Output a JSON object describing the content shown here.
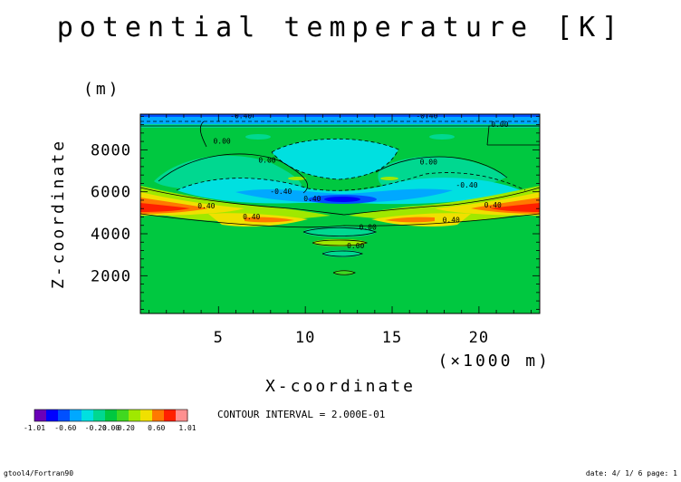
{
  "chart_data": {
    "type": "heatmap",
    "title": "potential temperature [K]",
    "xlabel": "X-coordinate",
    "ylabel": "Z-coordinate",
    "x_unit": "(×1000 m)",
    "y_unit": "(m)",
    "xlim": [
      0.5,
      23.5
    ],
    "ylim": [
      200,
      9700
    ],
    "x_ticks": [
      5,
      10,
      15,
      20
    ],
    "y_ticks": [
      2000,
      4000,
      6000,
      8000
    ],
    "x_tick_labels": [
      "5",
      "10",
      "15",
      "20"
    ],
    "y_tick_labels": [
      "2000",
      "4000",
      "6000",
      "8000"
    ],
    "contour_interval_text": "CONTOUR INTERVAL = 2.000E-01",
    "colorbar": {
      "colors": [
        "#6a00b8",
        "#0000ff",
        "#0050ff",
        "#00a8ff",
        "#00e0e0",
        "#00d890",
        "#00c840",
        "#40d820",
        "#a0e800",
        "#f0e000",
        "#ff7800",
        "#ff2000",
        "#ff9090"
      ],
      "min": -1.01,
      "max": 1.01,
      "tick_labels": [
        "-1.01",
        "-0.60",
        "-0.20",
        "0.00",
        "0.20",
        "0.60",
        "1.01"
      ]
    },
    "contour_labels": [
      {
        "x": 5.2,
        "y": 8300,
        "text": "0.00"
      },
      {
        "x": 7.8,
        "y": 7400,
        "text": "0.00"
      },
      {
        "x": 17.1,
        "y": 7300,
        "text": "0.00"
      },
      {
        "x": 21.2,
        "y": 9100,
        "text": "0.00"
      },
      {
        "x": 6.3,
        "y": 9500,
        "text": "-0.40"
      },
      {
        "x": 17.0,
        "y": 9500,
        "text": "-0.40"
      },
      {
        "x": 8.6,
        "y": 5900,
        "text": "-0.40"
      },
      {
        "x": 19.3,
        "y": 6200,
        "text": "-0.40"
      },
      {
        "x": 10.4,
        "y": 5550,
        "text": "0.40"
      },
      {
        "x": 4.3,
        "y": 5200,
        "text": "0.40"
      },
      {
        "x": 6.9,
        "y": 4700,
        "text": "0.40"
      },
      {
        "x": 18.4,
        "y": 4550,
        "text": "0.40"
      },
      {
        "x": 20.8,
        "y": 5250,
        "text": "0.40"
      },
      {
        "x": 13.6,
        "y": 4200,
        "text": "0.00"
      },
      {
        "x": 12.9,
        "y": 3300,
        "text": "0.00"
      }
    ]
  },
  "footer": {
    "left": "gtool4/Fortran90",
    "right": "date: 4/ 1/ 6 page: 1"
  }
}
